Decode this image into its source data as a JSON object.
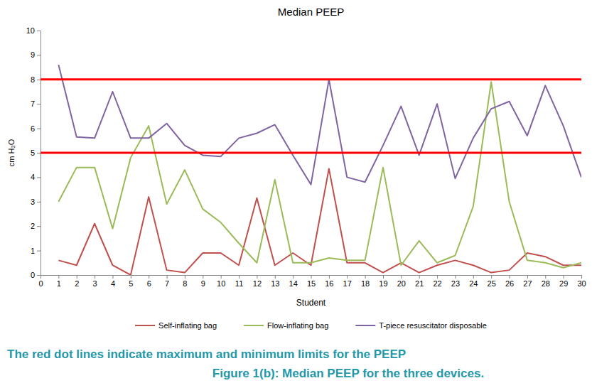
{
  "chart_data": {
    "type": "line",
    "title": "Median PEEP",
    "x_label": "Student",
    "y_label": "cm H₂O",
    "x": [
      1,
      2,
      3,
      4,
      5,
      6,
      7,
      8,
      9,
      10,
      11,
      12,
      13,
      14,
      15,
      16,
      17,
      18,
      19,
      20,
      21,
      22,
      23,
      24,
      25,
      26,
      27,
      28,
      29,
      30
    ],
    "series": [
      {
        "name": "Self-inflating bag",
        "color": "#c0504d",
        "values": [
          0.6,
          0.4,
          2.1,
          0.4,
          0.0,
          3.2,
          0.2,
          0.1,
          0.9,
          0.9,
          0.4,
          3.15,
          0.4,
          0.9,
          0.4,
          4.35,
          0.5,
          0.5,
          0.1,
          0.5,
          0.1,
          0.4,
          0.6,
          0.4,
          0.1,
          0.2,
          0.9,
          0.75,
          0.4,
          0.4
        ]
      },
      {
        "name": "Flow-inflating bag",
        "color": "#9bbb59",
        "values": [
          3.0,
          4.4,
          4.4,
          1.9,
          4.8,
          6.1,
          2.9,
          4.3,
          2.7,
          2.15,
          1.3,
          0.5,
          3.9,
          0.5,
          0.5,
          0.7,
          0.6,
          0.6,
          4.4,
          0.4,
          1.4,
          0.5,
          0.8,
          2.8,
          7.9,
          3.0,
          0.6,
          0.5,
          0.3,
          0.5
        ]
      },
      {
        "name": "T-piece resuscitator disposable",
        "color": "#8064a2",
        "values": [
          8.6,
          5.65,
          5.6,
          7.5,
          5.6,
          5.6,
          6.2,
          5.3,
          4.9,
          4.85,
          5.6,
          5.8,
          6.15,
          4.9,
          3.7,
          8.0,
          4.0,
          3.8,
          5.3,
          6.9,
          4.9,
          7.0,
          3.95,
          5.6,
          6.8,
          7.1,
          5.7,
          7.75,
          6.1,
          4.0
        ]
      }
    ],
    "limits": {
      "values": [
        8,
        5
      ],
      "color": "#ff0000"
    },
    "xlim": [
      0,
      30
    ],
    "xticks": [
      0,
      1,
      2,
      3,
      4,
      5,
      6,
      7,
      8,
      9,
      10,
      11,
      12,
      13,
      14,
      15,
      16,
      17,
      18,
      19,
      20,
      21,
      22,
      23,
      24,
      25,
      26,
      27,
      28,
      29,
      30
    ],
    "ylim": [
      0,
      10
    ],
    "yticks": [
      0,
      1,
      2,
      3,
      4,
      5,
      6,
      7,
      8,
      9,
      10
    ],
    "grid": false,
    "legend": "bottom",
    "annotations": [
      "The red dot lines indicate maximum and minimum limits for the PEEP",
      "Figure 1(b): Median PEEP for the three devices."
    ]
  }
}
